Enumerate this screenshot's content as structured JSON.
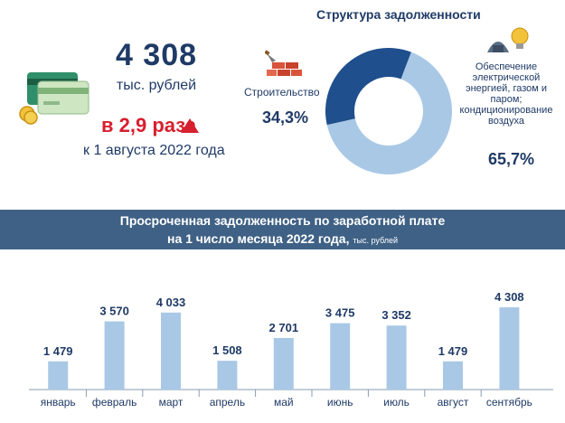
{
  "summary": {
    "total_value": "4 308",
    "total_unit": "тыс. рублей",
    "growth_value": "в 2,9 раза",
    "growth_note": "к 1 августа 2022 года"
  },
  "structure": {
    "title": "Структура задолженности",
    "segments": [
      {
        "label": "Строительство",
        "value_text": "34,3%",
        "share": 34.3,
        "color": "#1f4f8c"
      },
      {
        "label_lines": [
          "Обеспечение",
          "электрической",
          "энергией, газом и",
          "паром;",
          "кондиционирование",
          "воздуха"
        ],
        "value_text": "65,7%",
        "share": 65.7,
        "color": "#a9c8e6"
      }
    ]
  },
  "banner": {
    "line1": "Просроченная задолженность по заработной плате",
    "line2": "на 1 число месяца 2022 года,",
    "unit": "тыс. рублей"
  },
  "colors": {
    "bar": "#a9c8e6",
    "text": "#1f3a66",
    "banner": "#3f6185",
    "accent": "#d6202f"
  },
  "chart_data": {
    "type": "bar",
    "categories": [
      "январь",
      "февраль",
      "март",
      "апрель",
      "май",
      "июнь",
      "июль",
      "август",
      "сентябрь"
    ],
    "values": [
      1479,
      3570,
      4033,
      1508,
      2701,
      3475,
      3352,
      1479,
      4308
    ],
    "value_labels": [
      "1 479",
      "3 570",
      "4 033",
      "1 508",
      "2 701",
      "3 475",
      "3 352",
      "1 479",
      "4 308"
    ],
    "ylim": [
      0,
      4308
    ],
    "grid": false
  },
  "icons": [
    "credit-cards-icon",
    "bricks-trowel-icon",
    "power-plant-bulb-icon"
  ]
}
